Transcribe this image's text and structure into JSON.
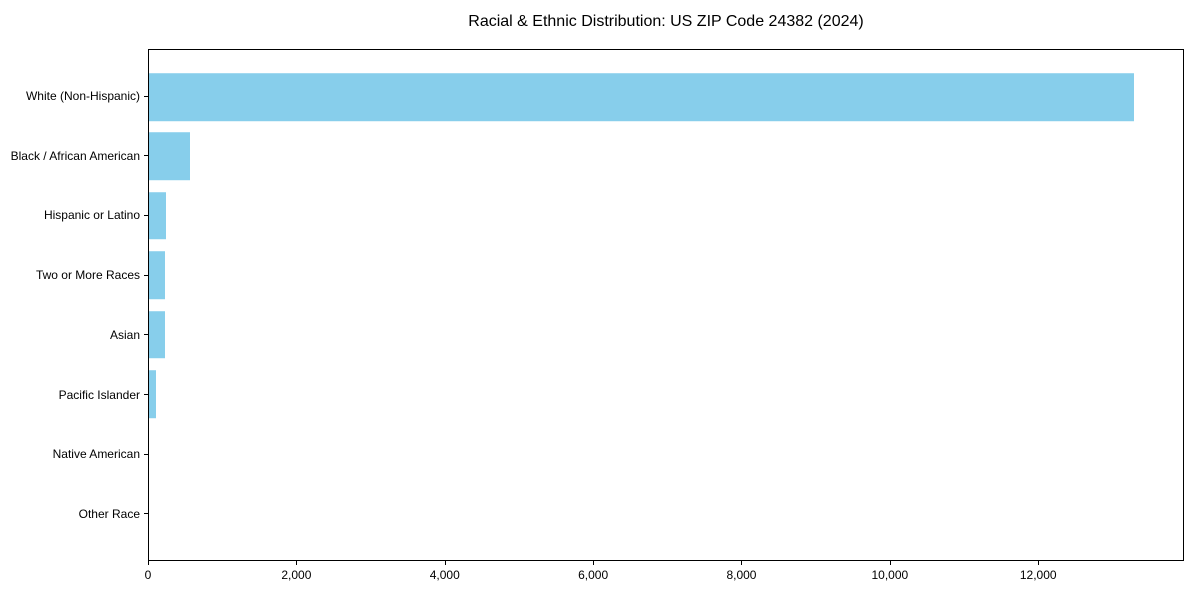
{
  "chart_data": {
    "type": "bar",
    "orientation": "horizontal",
    "title": "Racial & Ethnic Distribution: US ZIP Code 24382 (2024)",
    "categories": [
      "White (Non-Hispanic)",
      "Black / African American",
      "Hispanic or Latino",
      "Two or More Races",
      "Asian",
      "Pacific Islander",
      "Native American",
      "Other Race"
    ],
    "values": [
      13300,
      560,
      230,
      215,
      210,
      95,
      0,
      0
    ],
    "xlabel": "",
    "ylabel": "",
    "xlim": [
      0,
      13965
    ],
    "x_ticks": [
      0,
      2000,
      4000,
      6000,
      8000,
      10000,
      12000
    ],
    "x_tick_labels": [
      "0",
      "2,000",
      "4,000",
      "6,000",
      "8,000",
      "10,000",
      "12,000"
    ],
    "bar_color": "#87CEEB",
    "grid": false,
    "legend_position": "none"
  }
}
